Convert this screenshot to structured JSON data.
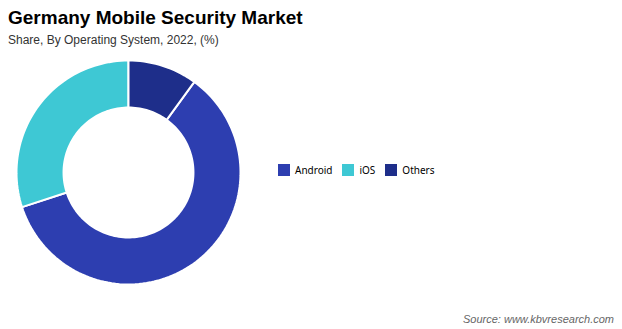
{
  "chart_data": {
    "type": "pie",
    "title": "Germany Mobile Security Market",
    "subtitle": "Share, By Operating System, 2022, (%)",
    "source": "Source: www.kbvresearch.com",
    "categories": [
      "Android",
      "iOS",
      "Others"
    ],
    "values": [
      60,
      30,
      10
    ],
    "colors": [
      "#2d3eb0",
      "#3ec8d4",
      "#1e2e8a"
    ],
    "legend": "right"
  }
}
